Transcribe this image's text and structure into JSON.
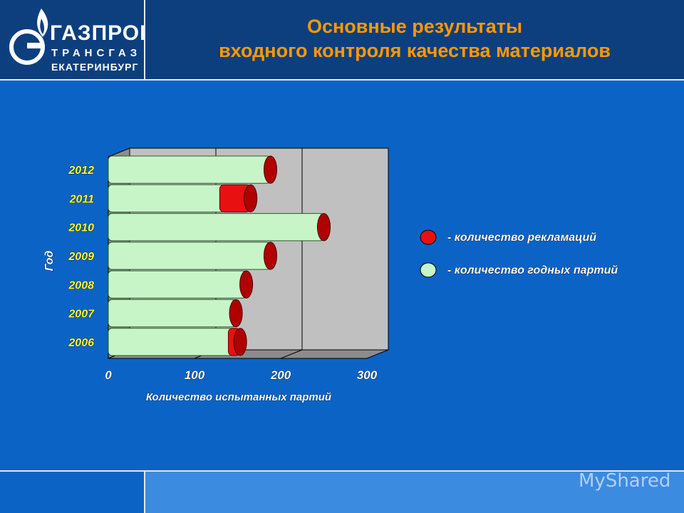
{
  "header": {
    "title_line1": "Основные результаты",
    "title_line2": "входного контроля качества материалов",
    "logo_line1": "ГАЗПРОМ",
    "logo_line2": "ТРАНСГАЗ",
    "logo_line3": "ЕКАТЕРИНБУРГ"
  },
  "watermark": "MyShared",
  "colors": {
    "background": "#0b63c6",
    "header": "#0d3f7f",
    "title": "#ff9900",
    "good": "#c8f5c8",
    "claims": "#e81010",
    "label": "#ffff33"
  },
  "chart_data": {
    "type": "bar",
    "orientation": "horizontal",
    "stacked": true,
    "categories": [
      "2006",
      "2007",
      "2008",
      "2009",
      "2010",
      "2011",
      "2012"
    ],
    "series": [
      {
        "name": "- количество годных партий",
        "color": "#c8f5c8",
        "values": [
          145,
          148,
          160,
          188,
          250,
          135,
          188
        ]
      },
      {
        "name": "- количество рекламаций",
        "color": "#e81010",
        "values": [
          8,
          0,
          0,
          0,
          0,
          30,
          0
        ]
      }
    ],
    "xlabel": "Количество испытанных партий",
    "ylabel": "Год",
    "xlim": [
      0,
      300
    ],
    "xticks": [
      "0",
      "100",
      "200",
      "300"
    ],
    "grid": true,
    "legend_position": "right"
  }
}
